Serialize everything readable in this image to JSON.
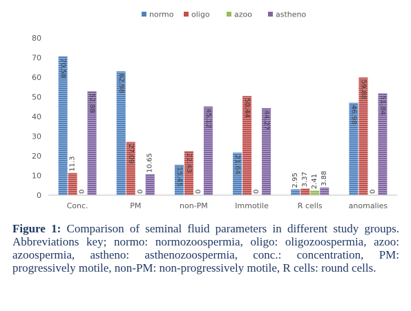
{
  "chart_data": {
    "type": "bar",
    "categories": [
      "Conc.",
      "PM",
      "non-PM",
      "Immotile",
      "R cells",
      "anomalies"
    ],
    "series": [
      {
        "name": "normo",
        "color": "#4f81bd",
        "values": [
          70.58,
          62.98,
          15.45,
          21.64,
          2.95,
          46.98
        ],
        "labels": [
          "70.58",
          "62.98",
          "15.45",
          "21.64",
          "2.95",
          "46.98"
        ]
      },
      {
        "name": "oligo",
        "color": "#c0504d",
        "values": [
          11.3,
          27.09,
          22.43,
          50.44,
          3.37,
          59.88
        ],
        "labels": [
          "11.3",
          "27.09",
          "22.43",
          "50.44",
          "3.37",
          "59.88"
        ]
      },
      {
        "name": "azoo",
        "color": "#9bbb59",
        "values": [
          0,
          0,
          0,
          0,
          2.41,
          0
        ],
        "labels": [
          "0",
          "0",
          "0",
          "0",
          "2.41",
          "0"
        ]
      },
      {
        "name": "astheno",
        "color": "#8064a2",
        "values": [
          52.88,
          10.65,
          45.12,
          44.27,
          3.88,
          51.84
        ],
        "labels": [
          "52.88",
          "10.65",
          "45.12",
          "44.27",
          "3.88",
          "51.84"
        ]
      }
    ],
    "yticks": [
      "0",
      "10",
      "20",
      "30",
      "40",
      "50",
      "60",
      "70",
      "80"
    ],
    "ylim": [
      0,
      80
    ],
    "grid": false,
    "legend_position": "top"
  },
  "caption": {
    "figure_label": "Figure 1:",
    "text": " Comparison of seminal fluid parameters in different study groups. Abbreviations key; normo: normozoospermia, oligo: oligozoospermia, azoo: azoospermia, astheno: asthenozoospermia, conc.: concentration, PM: progressively motile, non-PM: non-progressively motile, R cells: round cells."
  }
}
